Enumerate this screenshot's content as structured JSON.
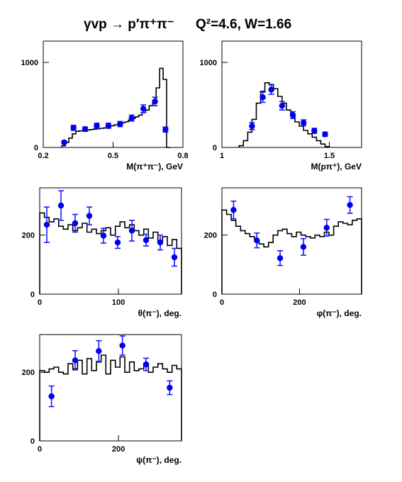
{
  "title": {
    "reaction": "γvp → p′π⁺π⁻",
    "kinematics": "Q²=4.6, W=1.66"
  },
  "colors": {
    "data_points": "#0000ee",
    "error_bars": "#1a1aff",
    "histogram": "#000000",
    "background": "#ffffff"
  },
  "chart_data": [
    {
      "type": "histogram+scatter",
      "xlabel": "M(π⁺π⁻), GeV",
      "xlim": [
        0.2,
        0.8
      ],
      "ylim": [
        0,
        1250
      ],
      "xticks": [
        0.2,
        0.5,
        0.8
      ],
      "xtick_labels": [
        "0.2",
        "0.5",
        "0.8"
      ],
      "yticks": [
        0,
        1000
      ],
      "ytick_labels": [
        "0",
        "1000"
      ],
      "hist_edges": [
        0.28,
        0.295,
        0.31,
        0.325,
        0.34,
        0.355,
        0.37,
        0.385,
        0.4,
        0.415,
        0.43,
        0.445,
        0.46,
        0.475,
        0.49,
        0.505,
        0.52,
        0.535,
        0.55,
        0.565,
        0.58,
        0.595,
        0.61,
        0.625,
        0.64,
        0.655,
        0.67,
        0.685,
        0.7,
        0.715,
        0.73,
        0.745
      ],
      "hist_values": [
        20,
        60,
        110,
        160,
        190,
        195,
        200,
        205,
        210,
        215,
        220,
        225,
        230,
        240,
        255,
        265,
        275,
        290,
        300,
        320,
        340,
        360,
        380,
        410,
        440,
        490,
        550,
        700,
        930,
        800,
        0
      ],
      "points": [
        {
          "x": 0.29,
          "y": 60,
          "err": 15
        },
        {
          "x": 0.33,
          "y": 230,
          "err": 30
        },
        {
          "x": 0.38,
          "y": 215,
          "err": 25
        },
        {
          "x": 0.43,
          "y": 255,
          "err": 30
        },
        {
          "x": 0.48,
          "y": 255,
          "err": 30
        },
        {
          "x": 0.53,
          "y": 275,
          "err": 30
        },
        {
          "x": 0.58,
          "y": 345,
          "err": 35
        },
        {
          "x": 0.63,
          "y": 455,
          "err": 45
        },
        {
          "x": 0.68,
          "y": 540,
          "err": 50
        },
        {
          "x": 0.725,
          "y": 210,
          "err": 30
        }
      ]
    },
    {
      "type": "histogram+scatter",
      "xlabel": "M(pπ⁺), GeV",
      "xlim": [
        1.0,
        1.65
      ],
      "ylim": [
        0,
        1250
      ],
      "xticks": [
        1.0,
        1.5
      ],
      "xtick_labels": [
        "1",
        "1.5"
      ],
      "yticks": [
        0,
        1000
      ],
      "ytick_labels": [
        "0",
        "1000"
      ],
      "hist_edges": [
        1.08,
        1.1,
        1.12,
        1.14,
        1.16,
        1.18,
        1.2,
        1.22,
        1.24,
        1.26,
        1.28,
        1.3,
        1.32,
        1.34,
        1.36,
        1.38,
        1.4,
        1.42,
        1.44,
        1.46,
        1.48,
        1.5
      ],
      "hist_values": [
        20,
        80,
        180,
        330,
        520,
        660,
        760,
        740,
        690,
        600,
        520,
        440,
        370,
        300,
        250,
        200,
        160,
        120,
        80,
        40,
        10
      ],
      "points": [
        {
          "x": 1.14,
          "y": 250,
          "err": 40
        },
        {
          "x": 1.19,
          "y": 590,
          "err": 60
        },
        {
          "x": 1.23,
          "y": 680,
          "err": 55
        },
        {
          "x": 1.28,
          "y": 490,
          "err": 50
        },
        {
          "x": 1.33,
          "y": 380,
          "err": 40
        },
        {
          "x": 1.38,
          "y": 290,
          "err": 35
        },
        {
          "x": 1.43,
          "y": 195,
          "err": 30
        },
        {
          "x": 1.48,
          "y": 155,
          "err": 25
        }
      ]
    },
    {
      "type": "histogram+scatter",
      "xlabel": "θ(π⁻), deg.",
      "xlim": [
        0,
        180
      ],
      "ylim": [
        0,
        360
      ],
      "xticks": [
        0,
        100
      ],
      "xtick_labels": [
        "0",
        "100"
      ],
      "yticks": [
        0,
        200
      ],
      "ytick_labels": [
        "0",
        "200"
      ],
      "hist_edges": [
        0,
        6,
        12,
        18,
        24,
        30,
        36,
        42,
        48,
        54,
        60,
        66,
        72,
        78,
        84,
        90,
        96,
        102,
        108,
        114,
        120,
        126,
        132,
        138,
        144,
        150,
        156,
        162,
        168,
        174,
        180
      ],
      "hist_values": [
        275,
        260,
        245,
        255,
        230,
        220,
        235,
        215,
        225,
        240,
        210,
        220,
        205,
        215,
        225,
        200,
        230,
        245,
        225,
        235,
        215,
        200,
        220,
        190,
        210,
        180,
        195,
        165,
        185,
        155
      ],
      "points": [
        {
          "x": 9,
          "y": 235,
          "err": 60
        },
        {
          "x": 27,
          "y": 300,
          "err": 50
        },
        {
          "x": 45,
          "y": 240,
          "err": 30
        },
        {
          "x": 63,
          "y": 265,
          "err": 30
        },
        {
          "x": 81,
          "y": 198,
          "err": 25
        },
        {
          "x": 99,
          "y": 175,
          "err": 20
        },
        {
          "x": 117,
          "y": 215,
          "err": 35
        },
        {
          "x": 135,
          "y": 183,
          "err": 20
        },
        {
          "x": 153,
          "y": 175,
          "err": 25
        },
        {
          "x": 171,
          "y": 125,
          "err": 30
        }
      ]
    },
    {
      "type": "histogram+scatter",
      "xlabel": "φ(π⁻), deg.",
      "xlim": [
        0,
        360
      ],
      "ylim": [
        0,
        360
      ],
      "xticks": [
        0,
        200
      ],
      "xtick_labels": [
        "0",
        "200"
      ],
      "yticks": [
        0,
        200
      ],
      "ytick_labels": [
        "0",
        "200"
      ],
      "hist_edges": [
        0,
        12,
        24,
        36,
        48,
        60,
        72,
        84,
        96,
        108,
        120,
        132,
        144,
        156,
        168,
        180,
        192,
        204,
        216,
        228,
        240,
        252,
        264,
        276,
        288,
        300,
        312,
        324,
        336,
        348,
        360
      ],
      "hist_values": [
        285,
        270,
        250,
        230,
        215,
        205,
        195,
        180,
        170,
        160,
        175,
        200,
        215,
        220,
        205,
        195,
        210,
        200,
        195,
        190,
        200,
        195,
        210,
        200,
        230,
        245,
        240,
        235,
        250,
        255
      ],
      "points": [
        {
          "x": 30,
          "y": 285,
          "err": 30
        },
        {
          "x": 90,
          "y": 182,
          "err": 25
        },
        {
          "x": 150,
          "y": 122,
          "err": 25
        },
        {
          "x": 210,
          "y": 160,
          "err": 28
        },
        {
          "x": 270,
          "y": 225,
          "err": 28
        },
        {
          "x": 330,
          "y": 302,
          "err": 28
        }
      ]
    },
    {
      "type": "histogram+scatter",
      "xlabel": "ψ(π⁻), deg.",
      "xlim": [
        0,
        360
      ],
      "ylim": [
        0,
        310
      ],
      "xticks": [
        0,
        200
      ],
      "xtick_labels": [
        "0",
        "200"
      ],
      "yticks": [
        0,
        200
      ],
      "ytick_labels": [
        "0",
        "200"
      ],
      "hist_edges": [
        0,
        12,
        24,
        36,
        48,
        60,
        72,
        84,
        96,
        108,
        120,
        132,
        144,
        156,
        168,
        180,
        192,
        204,
        216,
        228,
        240,
        252,
        264,
        276,
        288,
        300,
        312,
        324,
        336,
        348,
        360
      ],
      "hist_values": [
        205,
        200,
        210,
        215,
        200,
        195,
        225,
        210,
        235,
        195,
        240,
        205,
        230,
        250,
        195,
        235,
        215,
        245,
        200,
        230,
        205,
        210,
        225,
        200,
        215,
        225,
        210,
        200,
        220,
        210
      ],
      "points": [
        {
          "x": 30,
          "y": 130,
          "err": 30
        },
        {
          "x": 90,
          "y": 235,
          "err": 28
        },
        {
          "x": 150,
          "y": 262,
          "err": 30
        },
        {
          "x": 210,
          "y": 278,
          "err": 28
        },
        {
          "x": 270,
          "y": 223,
          "err": 18
        },
        {
          "x": 330,
          "y": 155,
          "err": 20
        }
      ]
    }
  ]
}
